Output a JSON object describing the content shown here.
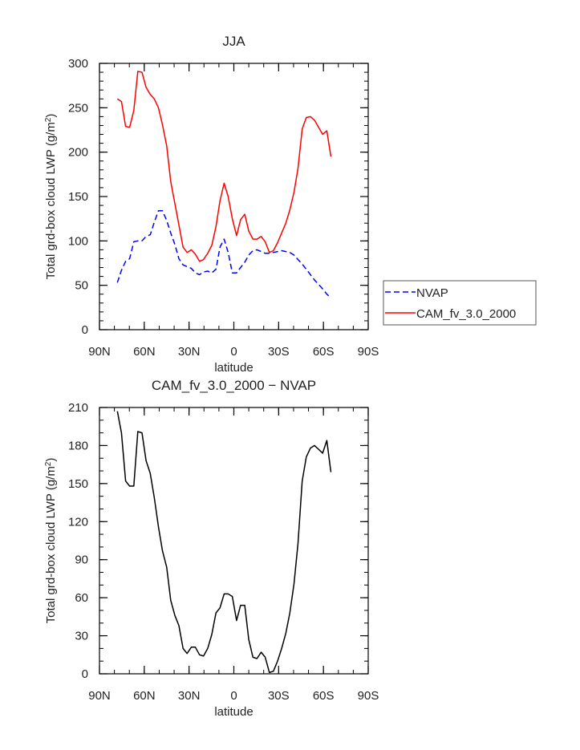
{
  "chart_data": [
    {
      "type": "line",
      "title": "JJA",
      "xlabel": "latitude",
      "ylabel": "Total grd-box cloud LWP (g/m²)",
      "ylabel_parts": {
        "main": "Total grd-box cloud LWP (g/m",
        "sup": "2",
        "close": ")"
      },
      "xlim": [
        90,
        -90
      ],
      "ylim": [
        0,
        300
      ],
      "x_ticks": [
        90,
        60,
        30,
        0,
        -30,
        -60,
        -90
      ],
      "x_tick_labels": [
        "90N",
        "60N",
        "30N",
        "0",
        "30S",
        "60S",
        "90S"
      ],
      "y_ticks": [
        0,
        50,
        100,
        150,
        200,
        250,
        300
      ],
      "y_tick_labels": [
        "0",
        "50",
        "100",
        "150",
        "200",
        "250",
        "300"
      ],
      "grid": false,
      "legend_position": "right",
      "x": [
        78.0,
        75.3,
        72.5,
        69.8,
        67.0,
        64.3,
        61.5,
        58.8,
        56.0,
        53.3,
        50.5,
        47.8,
        45.0,
        42.3,
        39.5,
        36.8,
        34.0,
        31.3,
        28.5,
        25.8,
        23.0,
        20.3,
        17.5,
        14.8,
        12.0,
        9.3,
        6.5,
        3.8,
        1.0,
        -1.8,
        -4.5,
        -7.3,
        -10.0,
        -12.8,
        -15.5,
        -18.3,
        -21.0,
        -23.8,
        -26.5,
        -29.3,
        -32.0,
        -34.8,
        -37.5,
        -40.3,
        -43.0,
        -45.8,
        -48.5,
        -51.3,
        -54.0,
        -56.8,
        -59.5,
        -62.3,
        -65.0
      ],
      "series": [
        {
          "name": "NVAP",
          "color": "#0000ff",
          "dash": "dashed",
          "values": [
            53,
            67,
            77,
            80,
            99,
            100,
            100,
            105,
            107,
            121,
            134,
            134,
            123,
            109,
            96,
            80,
            73,
            71,
            69,
            64,
            62,
            65,
            66,
            64,
            68,
            93,
            102,
            87,
            64,
            64,
            70,
            76,
            84,
            89,
            90,
            88,
            86,
            86,
            87,
            88,
            89,
            88,
            87,
            84,
            79,
            74,
            68,
            62,
            56,
            51,
            46,
            40,
            36
          ]
        },
        {
          "name": "CAM_fv_3.0_2000",
          "color": "#ff0000",
          "dash": "solid",
          "values": [
            260,
            257,
            229,
            228,
            247,
            291,
            290,
            273,
            265,
            260,
            250,
            231,
            207,
            167,
            142,
            118,
            93,
            87,
            90,
            85,
            77,
            79,
            86,
            95,
            116,
            145,
            165,
            150,
            125,
            106,
            124,
            130,
            111,
            102,
            102,
            105,
            99,
            87,
            89,
            98,
            109,
            120,
            135,
            155,
            182,
            226,
            239,
            240,
            236,
            228,
            220,
            224,
            195
          ]
        }
      ]
    },
    {
      "type": "line",
      "title": "CAM_fv_3.0_2000 − NVAP",
      "xlabel": "latitude",
      "ylabel": "Total grd-box cloud LWP (g/m²)",
      "ylabel_parts": {
        "main": "Total grd-box cloud LWP (g/m",
        "sup": "2",
        "close": ")"
      },
      "xlim": [
        90,
        -90
      ],
      "ylim": [
        0,
        210
      ],
      "x_ticks": [
        90,
        60,
        30,
        0,
        -30,
        -60,
        -90
      ],
      "x_tick_labels": [
        "90N",
        "60N",
        "30N",
        "0",
        "30S",
        "60S",
        "90S"
      ],
      "y_ticks": [
        0,
        30,
        60,
        90,
        120,
        150,
        180,
        210
      ],
      "y_tick_labels": [
        "0",
        "30",
        "60",
        "90",
        "120",
        "150",
        "180",
        "210"
      ],
      "grid": false,
      "x": [
        78.0,
        75.3,
        72.5,
        69.8,
        67.0,
        64.3,
        61.5,
        58.8,
        56.0,
        53.3,
        50.5,
        47.8,
        45.0,
        42.3,
        39.5,
        36.8,
        34.0,
        31.3,
        28.5,
        25.8,
        23.0,
        20.3,
        17.5,
        14.8,
        12.0,
        9.3,
        6.5,
        3.8,
        1.0,
        -1.8,
        -4.5,
        -7.3,
        -10.0,
        -12.8,
        -15.5,
        -18.3,
        -21.0,
        -23.8,
        -26.5,
        -29.3,
        -32.0,
        -34.8,
        -37.5,
        -40.3,
        -43.0,
        -45.8,
        -48.5,
        -51.3,
        -54.0,
        -56.8,
        -59.5,
        -62.3,
        -65.0
      ],
      "series": [
        {
          "color": "#000000",
          "dash": "solid",
          "values": [
            207,
            190,
            152,
            148,
            148,
            191,
            190,
            168,
            158,
            139,
            116,
            97,
            84,
            58,
            46,
            38,
            20,
            16,
            21,
            21,
            15,
            14,
            20,
            31,
            48,
            52,
            63,
            63,
            61,
            42,
            54,
            54,
            27,
            13,
            12,
            17,
            13,
            1,
            2,
            10,
            20,
            32,
            48,
            71,
            103,
            152,
            171,
            178,
            180,
            177,
            174,
            184,
            159
          ]
        }
      ]
    }
  ]
}
